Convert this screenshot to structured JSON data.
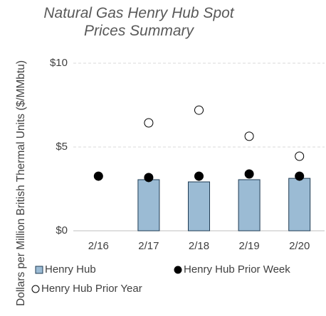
{
  "chart_data": {
    "type": "bar",
    "title": "Natural Gas Henry Hub Spot Prices Summary",
    "y_axis_label": "Dollars per Million British Thermal Units ($/MMbtu)",
    "categories": [
      "2/16",
      "2/17",
      "2/18",
      "2/19",
      "2/20"
    ],
    "series": [
      {
        "name": "Henry Hub",
        "type": "bar",
        "color": "#9bbbd4",
        "values": [
          null,
          3.05,
          2.92,
          3.05,
          3.13
        ]
      },
      {
        "name": "Henry Hub Prior Week",
        "type": "scatter",
        "color": "#000000",
        "values": [
          3.26,
          3.18,
          3.26,
          3.39,
          3.26
        ]
      },
      {
        "name": "Henry Hub Prior Year",
        "type": "scatter",
        "color": "#ffffff",
        "values": [
          null,
          6.44,
          7.2,
          5.64,
          4.45
        ]
      }
    ],
    "ylim": [
      0,
      10
    ],
    "yticks": [
      {
        "value": 0,
        "label": "$0"
      },
      {
        "value": 5,
        "label": "$5"
      },
      {
        "value": 10,
        "label": "$10"
      }
    ],
    "grid": true
  }
}
